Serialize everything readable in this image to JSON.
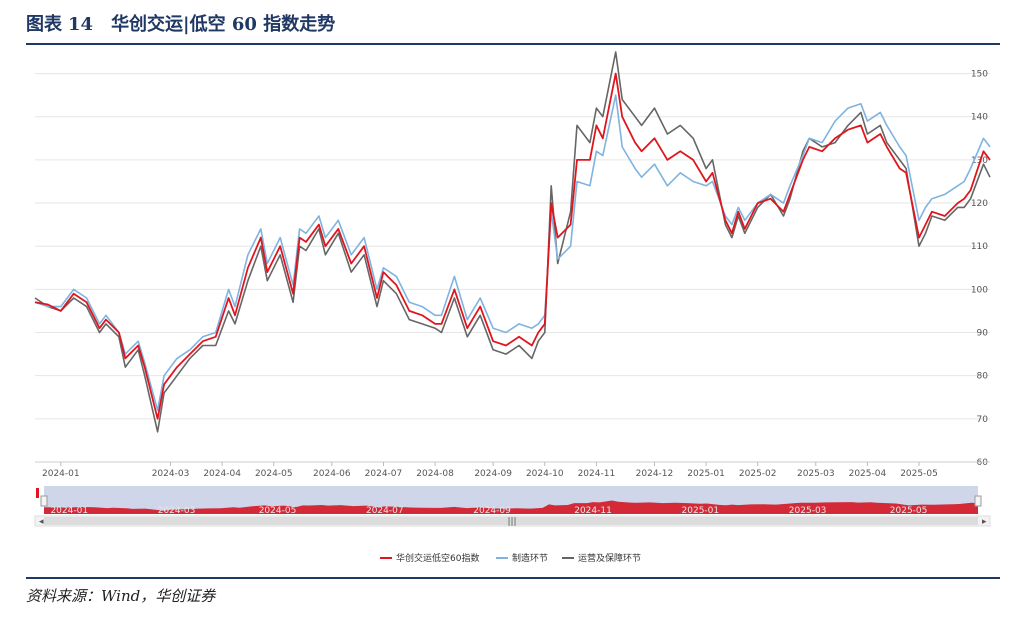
{
  "title": {
    "prefix": "图表",
    "number": "14",
    "text": "华创交运|低空 60 指数走势"
  },
  "source": "资料来源：Wind，华创证券",
  "colors": {
    "series1": "#e0161e",
    "series2": "#7fb3e0",
    "series3": "#666666",
    "navigator_fill": "#d42a38",
    "navigator_bg": "#cfd6ea",
    "title": "#1f3864"
  },
  "chart_data": {
    "type": "line",
    "grid": true,
    "legend_position": "bottom-center",
    "ylim": [
      60,
      155
    ],
    "y_ticks": [
      "60",
      "70",
      "80",
      "90",
      "100",
      "110",
      "120",
      "130",
      "140",
      "150"
    ],
    "x_tick_labels": [
      "2024-01",
      "2024-03",
      "2024-04",
      "2024-05",
      "2024-06",
      "2024-07",
      "2024-08",
      "2024-09",
      "2024-10",
      "2024-11",
      "2024-12",
      "2025-01",
      "2025-02",
      "2025-03",
      "2025-04",
      "2025-05"
    ],
    "x_tick_times": [
      2024.0,
      2024.17,
      2024.25,
      2024.33,
      2024.42,
      2024.5,
      2024.58,
      2024.67,
      2024.75,
      2024.83,
      2024.92,
      2025.0,
      2025.08,
      2025.17,
      2025.25,
      2025.33
    ],
    "navigator_labels": [
      "2024-01",
      "2024-03",
      "2024-05",
      "2024-07",
      "2024-09",
      "2024-11",
      "2025-01",
      "2025-03",
      "2025-05"
    ],
    "navigator_times": [
      2024.0,
      2024.17,
      2024.33,
      2024.5,
      2024.67,
      2024.83,
      2025.0,
      2025.17,
      2025.33
    ],
    "series": [
      {
        "name": "华创交运低空60指数",
        "color": "#e0161e",
        "points": [
          [
            2023.96,
            97
          ],
          [
            2023.98,
            96.5
          ],
          [
            2024.0,
            95
          ],
          [
            2024.02,
            99
          ],
          [
            2024.04,
            97
          ],
          [
            2024.06,
            91
          ],
          [
            2024.07,
            93
          ],
          [
            2024.09,
            90
          ],
          [
            2024.1,
            84
          ],
          [
            2024.12,
            87
          ],
          [
            2024.13,
            82
          ],
          [
            2024.15,
            70
          ],
          [
            2024.16,
            78
          ],
          [
            2024.18,
            82
          ],
          [
            2024.2,
            85
          ],
          [
            2024.22,
            88
          ],
          [
            2024.24,
            89
          ],
          [
            2024.26,
            98
          ],
          [
            2024.27,
            94
          ],
          [
            2024.29,
            105
          ],
          [
            2024.31,
            112
          ],
          [
            2024.32,
            104
          ],
          [
            2024.34,
            110
          ],
          [
            2024.36,
            99
          ],
          [
            2024.37,
            112
          ],
          [
            2024.38,
            111
          ],
          [
            2024.4,
            115
          ],
          [
            2024.41,
            110
          ],
          [
            2024.43,
            114
          ],
          [
            2024.45,
            106
          ],
          [
            2024.47,
            110
          ],
          [
            2024.49,
            98
          ],
          [
            2024.5,
            104
          ],
          [
            2024.52,
            101
          ],
          [
            2024.54,
            95
          ],
          [
            2024.56,
            94
          ],
          [
            2024.58,
            92
          ],
          [
            2024.59,
            92
          ],
          [
            2024.61,
            100
          ],
          [
            2024.63,
            91
          ],
          [
            2024.65,
            96
          ],
          [
            2024.67,
            88
          ],
          [
            2024.69,
            87
          ],
          [
            2024.71,
            89
          ],
          [
            2024.73,
            87
          ],
          [
            2024.74,
            90
          ],
          [
            2024.75,
            92
          ],
          [
            2024.76,
            120
          ],
          [
            2024.77,
            112
          ],
          [
            2024.79,
            115
          ],
          [
            2024.8,
            130
          ],
          [
            2024.82,
            130
          ],
          [
            2024.83,
            138
          ],
          [
            2024.84,
            135
          ],
          [
            2024.86,
            150
          ],
          [
            2024.87,
            140
          ],
          [
            2024.89,
            134
          ],
          [
            2024.9,
            132
          ],
          [
            2024.92,
            135
          ],
          [
            2024.94,
            130
          ],
          [
            2024.96,
            132
          ],
          [
            2024.98,
            130
          ],
          [
            2025.0,
            125
          ],
          [
            2025.01,
            127
          ],
          [
            2025.03,
            116
          ],
          [
            2025.04,
            113
          ],
          [
            2025.05,
            118
          ],
          [
            2025.06,
            114
          ],
          [
            2025.08,
            120
          ],
          [
            2025.1,
            121
          ],
          [
            2025.12,
            118
          ],
          [
            2025.13,
            122
          ],
          [
            2025.15,
            130
          ],
          [
            2025.16,
            133
          ],
          [
            2025.18,
            132
          ],
          [
            2025.2,
            135
          ],
          [
            2025.22,
            137
          ],
          [
            2025.24,
            138
          ],
          [
            2025.25,
            134
          ],
          [
            2025.27,
            136
          ],
          [
            2025.28,
            133
          ],
          [
            2025.3,
            128
          ],
          [
            2025.31,
            127
          ],
          [
            2025.33,
            112
          ],
          [
            2025.34,
            115
          ],
          [
            2025.35,
            118
          ],
          [
            2025.37,
            117
          ],
          [
            2025.39,
            120
          ],
          [
            2025.4,
            121
          ],
          [
            2025.41,
            123
          ],
          [
            2025.43,
            132
          ],
          [
            2025.44,
            130
          ]
        ]
      },
      {
        "name": "制造环节",
        "color": "#7fb3e0",
        "points": [
          [
            2023.96,
            97
          ],
          [
            2023.98,
            96
          ],
          [
            2024.0,
            96
          ],
          [
            2024.02,
            100
          ],
          [
            2024.04,
            98
          ],
          [
            2024.06,
            92
          ],
          [
            2024.07,
            94
          ],
          [
            2024.09,
            90
          ],
          [
            2024.1,
            85
          ],
          [
            2024.12,
            88
          ],
          [
            2024.13,
            83
          ],
          [
            2024.15,
            72
          ],
          [
            2024.16,
            80
          ],
          [
            2024.18,
            84
          ],
          [
            2024.2,
            86
          ],
          [
            2024.22,
            89
          ],
          [
            2024.24,
            90
          ],
          [
            2024.26,
            100
          ],
          [
            2024.27,
            96
          ],
          [
            2024.29,
            108
          ],
          [
            2024.31,
            114
          ],
          [
            2024.32,
            106
          ],
          [
            2024.34,
            112
          ],
          [
            2024.36,
            101
          ],
          [
            2024.37,
            114
          ],
          [
            2024.38,
            113
          ],
          [
            2024.4,
            117
          ],
          [
            2024.41,
            112
          ],
          [
            2024.43,
            116
          ],
          [
            2024.45,
            108
          ],
          [
            2024.47,
            112
          ],
          [
            2024.49,
            100
          ],
          [
            2024.5,
            105
          ],
          [
            2024.52,
            103
          ],
          [
            2024.54,
            97
          ],
          [
            2024.56,
            96
          ],
          [
            2024.58,
            94
          ],
          [
            2024.59,
            94
          ],
          [
            2024.61,
            103
          ],
          [
            2024.63,
            93
          ],
          [
            2024.65,
            98
          ],
          [
            2024.67,
            91
          ],
          [
            2024.69,
            90
          ],
          [
            2024.71,
            92
          ],
          [
            2024.73,
            91
          ],
          [
            2024.74,
            92
          ],
          [
            2024.75,
            94
          ],
          [
            2024.76,
            118
          ],
          [
            2024.77,
            107
          ],
          [
            2024.79,
            110
          ],
          [
            2024.8,
            125
          ],
          [
            2024.82,
            124
          ],
          [
            2024.83,
            132
          ],
          [
            2024.84,
            131
          ],
          [
            2024.86,
            145
          ],
          [
            2024.87,
            133
          ],
          [
            2024.89,
            128
          ],
          [
            2024.9,
            126
          ],
          [
            2024.92,
            129
          ],
          [
            2024.94,
            124
          ],
          [
            2024.96,
            127
          ],
          [
            2024.98,
            125
          ],
          [
            2025.0,
            124
          ],
          [
            2025.01,
            125
          ],
          [
            2025.03,
            117
          ],
          [
            2025.04,
            115
          ],
          [
            2025.05,
            119
          ],
          [
            2025.06,
            116
          ],
          [
            2025.08,
            120
          ],
          [
            2025.1,
            122
          ],
          [
            2025.12,
            120
          ],
          [
            2025.13,
            124
          ],
          [
            2025.15,
            131
          ],
          [
            2025.16,
            135
          ],
          [
            2025.18,
            134
          ],
          [
            2025.2,
            139
          ],
          [
            2025.22,
            142
          ],
          [
            2025.24,
            143
          ],
          [
            2025.25,
            139
          ],
          [
            2025.27,
            141
          ],
          [
            2025.28,
            138
          ],
          [
            2025.3,
            133
          ],
          [
            2025.31,
            131
          ],
          [
            2025.33,
            116
          ],
          [
            2025.34,
            119
          ],
          [
            2025.35,
            121
          ],
          [
            2025.37,
            122
          ],
          [
            2025.39,
            124
          ],
          [
            2025.4,
            125
          ],
          [
            2025.41,
            128
          ],
          [
            2025.43,
            135
          ],
          [
            2025.44,
            133
          ]
        ]
      },
      {
        "name": "运营及保障环节",
        "color": "#666666",
        "points": [
          [
            2023.96,
            98
          ],
          [
            2023.98,
            96
          ],
          [
            2024.0,
            95
          ],
          [
            2024.02,
            98
          ],
          [
            2024.04,
            96
          ],
          [
            2024.06,
            90
          ],
          [
            2024.07,
            92
          ],
          [
            2024.09,
            89
          ],
          [
            2024.1,
            82
          ],
          [
            2024.12,
            86
          ],
          [
            2024.13,
            80
          ],
          [
            2024.15,
            67
          ],
          [
            2024.16,
            76
          ],
          [
            2024.18,
            80
          ],
          [
            2024.2,
            84
          ],
          [
            2024.22,
            87
          ],
          [
            2024.24,
            87
          ],
          [
            2024.26,
            95
          ],
          [
            2024.27,
            92
          ],
          [
            2024.29,
            102
          ],
          [
            2024.31,
            110
          ],
          [
            2024.32,
            102
          ],
          [
            2024.34,
            108
          ],
          [
            2024.36,
            97
          ],
          [
            2024.37,
            110
          ],
          [
            2024.38,
            109
          ],
          [
            2024.4,
            114
          ],
          [
            2024.41,
            108
          ],
          [
            2024.43,
            113
          ],
          [
            2024.45,
            104
          ],
          [
            2024.47,
            108
          ],
          [
            2024.49,
            96
          ],
          [
            2024.5,
            102
          ],
          [
            2024.52,
            99
          ],
          [
            2024.54,
            93
          ],
          [
            2024.56,
            92
          ],
          [
            2024.58,
            91
          ],
          [
            2024.59,
            90
          ],
          [
            2024.61,
            98
          ],
          [
            2024.63,
            89
          ],
          [
            2024.65,
            94
          ],
          [
            2024.67,
            86
          ],
          [
            2024.69,
            85
          ],
          [
            2024.71,
            87
          ],
          [
            2024.73,
            84
          ],
          [
            2024.74,
            88
          ],
          [
            2024.75,
            90
          ],
          [
            2024.76,
            124
          ],
          [
            2024.77,
            106
          ],
          [
            2024.79,
            118
          ],
          [
            2024.8,
            138
          ],
          [
            2024.82,
            134
          ],
          [
            2024.83,
            142
          ],
          [
            2024.84,
            140
          ],
          [
            2024.86,
            155
          ],
          [
            2024.87,
            144
          ],
          [
            2024.89,
            140
          ],
          [
            2024.9,
            138
          ],
          [
            2024.92,
            142
          ],
          [
            2024.94,
            136
          ],
          [
            2024.96,
            138
          ],
          [
            2024.98,
            135
          ],
          [
            2025.0,
            128
          ],
          [
            2025.01,
            130
          ],
          [
            2025.03,
            115
          ],
          [
            2025.04,
            112
          ],
          [
            2025.05,
            117
          ],
          [
            2025.06,
            113
          ],
          [
            2025.08,
            119
          ],
          [
            2025.1,
            122
          ],
          [
            2025.12,
            117
          ],
          [
            2025.13,
            121
          ],
          [
            2025.15,
            132
          ],
          [
            2025.16,
            135
          ],
          [
            2025.18,
            133
          ],
          [
            2025.2,
            134
          ],
          [
            2025.22,
            138
          ],
          [
            2025.24,
            141
          ],
          [
            2025.25,
            136
          ],
          [
            2025.27,
            138
          ],
          [
            2025.28,
            134
          ],
          [
            2025.3,
            130
          ],
          [
            2025.31,
            128
          ],
          [
            2025.33,
            110
          ],
          [
            2025.34,
            113
          ],
          [
            2025.35,
            117
          ],
          [
            2025.37,
            116
          ],
          [
            2025.39,
            119
          ],
          [
            2025.4,
            119
          ],
          [
            2025.41,
            121
          ],
          [
            2025.43,
            129
          ],
          [
            2025.44,
            126
          ]
        ]
      }
    ]
  }
}
